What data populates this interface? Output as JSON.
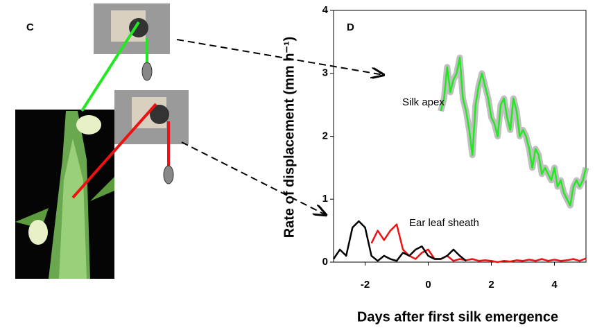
{
  "diagram": {
    "label": "C"
  },
  "chart_data": {
    "type": "line",
    "panel_label": "D",
    "xlabel": "Days after first silk emergence",
    "ylabel": "Rate of displacement (mm h⁻¹)",
    "xlim": [
      -3,
      5
    ],
    "xticks": [
      -2,
      0,
      2,
      4
    ],
    "ylim": [
      0,
      4
    ],
    "yticks": [
      0,
      1,
      2,
      3,
      4
    ],
    "halo_color": "#c0c0c0",
    "series": [
      {
        "name": "Silk apex",
        "color": "#22e822",
        "x": [
          0.4,
          0.5,
          0.6,
          0.7,
          0.8,
          0.9,
          1.0,
          1.1,
          1.2,
          1.3,
          1.4,
          1.5,
          1.6,
          1.7,
          1.8,
          1.9,
          2.0,
          2.1,
          2.2,
          2.3,
          2.4,
          2.5,
          2.6,
          2.7,
          2.8,
          2.9,
          3.0,
          3.1,
          3.2,
          3.3,
          3.4,
          3.5,
          3.6,
          3.7,
          3.8,
          3.9,
          4.0,
          4.1,
          4.2,
          4.3,
          4.4,
          4.5,
          4.6,
          4.7,
          4.8,
          4.9,
          5.0
        ],
        "values": [
          2.4,
          2.6,
          3.1,
          2.7,
          2.9,
          3.0,
          3.25,
          2.6,
          2.4,
          2.1,
          1.7,
          2.5,
          2.8,
          3.0,
          2.8,
          2.6,
          2.3,
          2.2,
          2.0,
          2.5,
          2.6,
          2.3,
          2.1,
          2.6,
          2.4,
          2.0,
          2.1,
          2.0,
          1.8,
          1.5,
          1.8,
          1.7,
          1.4,
          1.5,
          1.4,
          1.3,
          1.5,
          1.2,
          1.3,
          1.1,
          1.0,
          0.9,
          1.2,
          1.3,
          1.2,
          1.3,
          1.5
        ]
      },
      {
        "name": "Ear leaf sheath",
        "color": "#ee1111",
        "x": [
          -1.8,
          -1.6,
          -1.4,
          -1.2,
          -1.0,
          -0.8,
          -0.6,
          -0.4,
          -0.2,
          0,
          0.2,
          0.4,
          0.6,
          0.8,
          1.0,
          1.2,
          1.4,
          1.6,
          1.8,
          2.0,
          2.2,
          2.4,
          2.6,
          2.8,
          3.0,
          3.2,
          3.4,
          3.6,
          3.8,
          4.0,
          4.2,
          4.4,
          4.6,
          4.8,
          5.0
        ],
        "values": [
          0.3,
          0.5,
          0.35,
          0.5,
          0.6,
          0.2,
          0.1,
          0.05,
          0.15,
          0.2,
          0.05,
          0.05,
          0.1,
          0.02,
          0.05,
          0.03,
          0.05,
          0.02,
          0.03,
          0.02,
          0.0,
          0.02,
          0.01,
          0.03,
          0.02,
          0.04,
          0.02,
          0.05,
          0.02,
          0.04,
          0.02,
          0.03,
          0.05,
          0.02,
          0.06
        ]
      },
      {
        "color": "#000000",
        "x": [
          -3,
          -2.8,
          -2.6,
          -2.4,
          -2.2,
          -2.0,
          -1.8,
          -1.6,
          -1.4,
          -1.2,
          -1.0,
          -0.8,
          -0.6,
          -0.4,
          -0.2,
          0,
          0.2,
          0.4,
          0.6,
          0.8,
          1.0,
          1.2
        ],
        "values": [
          0.05,
          0.2,
          0.1,
          0.55,
          0.65,
          0.55,
          0.1,
          0.02,
          0.1,
          0.05,
          0.02,
          0.15,
          0.1,
          0.2,
          0.25,
          0.1,
          0.05,
          0.05,
          0.1,
          0.2,
          0.1,
          0.02
        ]
      }
    ]
  }
}
